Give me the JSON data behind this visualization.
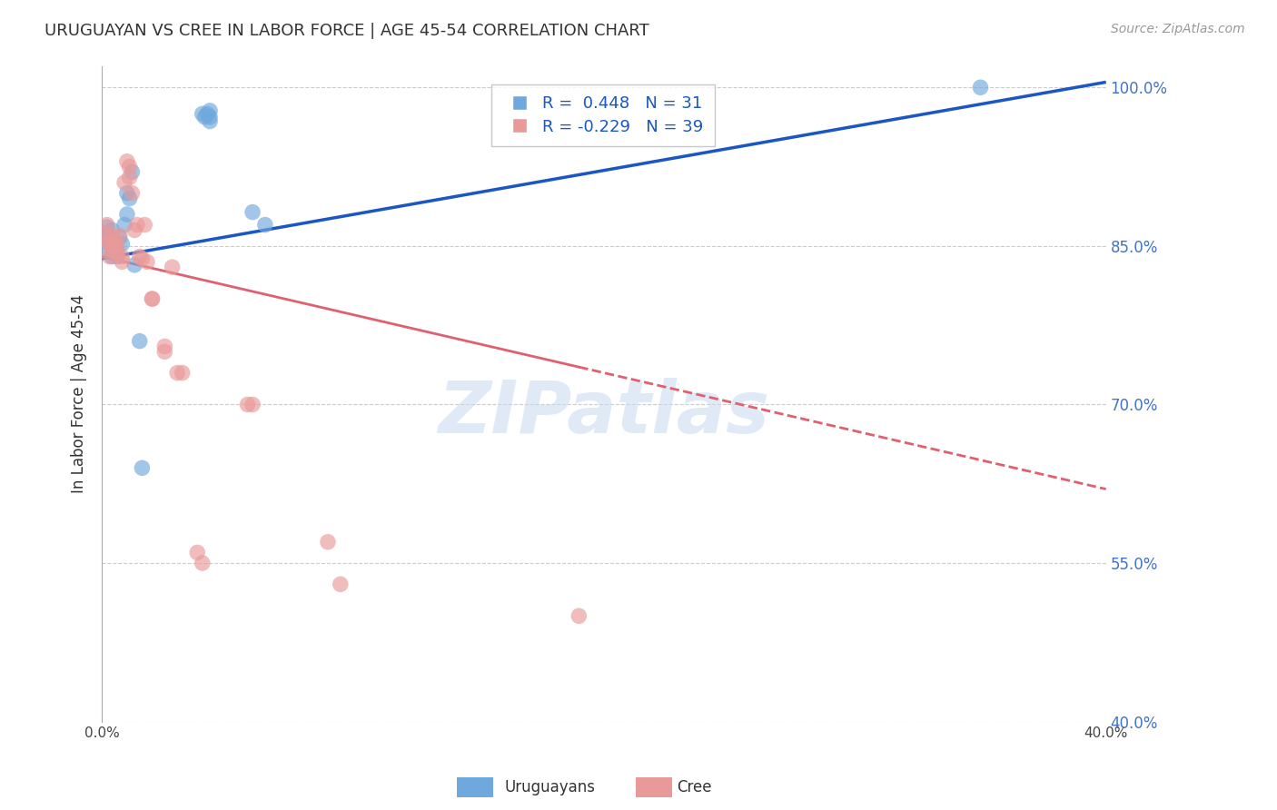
{
  "title": "URUGUAYAN VS CREE IN LABOR FORCE | AGE 45-54 CORRELATION CHART",
  "source_text": "Source: ZipAtlas.com",
  "ylabel": "In Labor Force | Age 45-54",
  "watermark": "ZIPatlas",
  "xmin": 0.0,
  "xmax": 0.4,
  "ymin": 0.4,
  "ymax": 1.02,
  "yticks": [
    0.4,
    0.55,
    0.7,
    0.85,
    1.0
  ],
  "ytick_labels": [
    "40.0%",
    "55.0%",
    "70.0%",
    "85.0%",
    "100.0%"
  ],
  "xticks": [
    0.0,
    0.05,
    0.1,
    0.15,
    0.2,
    0.25,
    0.3,
    0.35,
    0.4
  ],
  "xtick_labels": [
    "0.0%",
    "",
    "",
    "",
    "",
    "",
    "",
    "",
    "40.0%"
  ],
  "blue_r": 0.448,
  "blue_n": 31,
  "pink_r": -0.229,
  "pink_n": 39,
  "blue_color": "#6fa8dc",
  "pink_color": "#ea9999",
  "blue_line_color": "#1a56c4",
  "pink_line_color": "#e06070",
  "legend_label_blue": "Uruguayans",
  "legend_label_pink": "Cree",
  "blue_x": [
    0.001,
    0.002,
    0.002,
    0.003,
    0.003,
    0.004,
    0.004,
    0.004,
    0.005,
    0.005,
    0.006,
    0.006,
    0.007,
    0.008,
    0.009,
    0.01,
    0.01,
    0.011,
    0.012,
    0.013,
    0.015,
    0.016,
    0.04,
    0.041,
    0.042,
    0.043,
    0.043,
    0.043,
    0.06,
    0.065,
    0.35
  ],
  "blue_y": [
    0.862,
    0.855,
    0.868,
    0.852,
    0.845,
    0.865,
    0.858,
    0.84,
    0.852,
    0.848,
    0.845,
    0.84,
    0.858,
    0.852,
    0.87,
    0.9,
    0.88,
    0.895,
    0.92,
    0.832,
    0.76,
    0.64,
    0.975,
    0.972,
    0.975,
    0.978,
    0.972,
    0.968,
    0.882,
    0.87,
    1.0
  ],
  "pink_x": [
    0.001,
    0.002,
    0.002,
    0.003,
    0.003,
    0.004,
    0.004,
    0.005,
    0.005,
    0.006,
    0.006,
    0.007,
    0.008,
    0.008,
    0.009,
    0.01,
    0.011,
    0.011,
    0.012,
    0.013,
    0.014,
    0.015,
    0.016,
    0.017,
    0.018,
    0.02,
    0.02,
    0.025,
    0.025,
    0.028,
    0.03,
    0.032,
    0.038,
    0.04,
    0.058,
    0.06,
    0.09,
    0.095,
    0.19
  ],
  "pink_y": [
    0.862,
    0.855,
    0.87,
    0.852,
    0.84,
    0.86,
    0.845,
    0.855,
    0.85,
    0.842,
    0.85,
    0.86,
    0.84,
    0.835,
    0.91,
    0.93,
    0.925,
    0.915,
    0.9,
    0.865,
    0.87,
    0.84,
    0.838,
    0.87,
    0.835,
    0.8,
    0.8,
    0.755,
    0.75,
    0.83,
    0.73,
    0.73,
    0.56,
    0.55,
    0.7,
    0.7,
    0.57,
    0.53,
    0.5
  ],
  "blue_line_x0": 0.0,
  "blue_line_x1": 0.4,
  "blue_line_y0": 0.838,
  "blue_line_y1": 1.005,
  "pink_line_x0": 0.0,
  "pink_line_x1": 0.4,
  "pink_line_y0": 0.84,
  "pink_line_y1": 0.62
}
